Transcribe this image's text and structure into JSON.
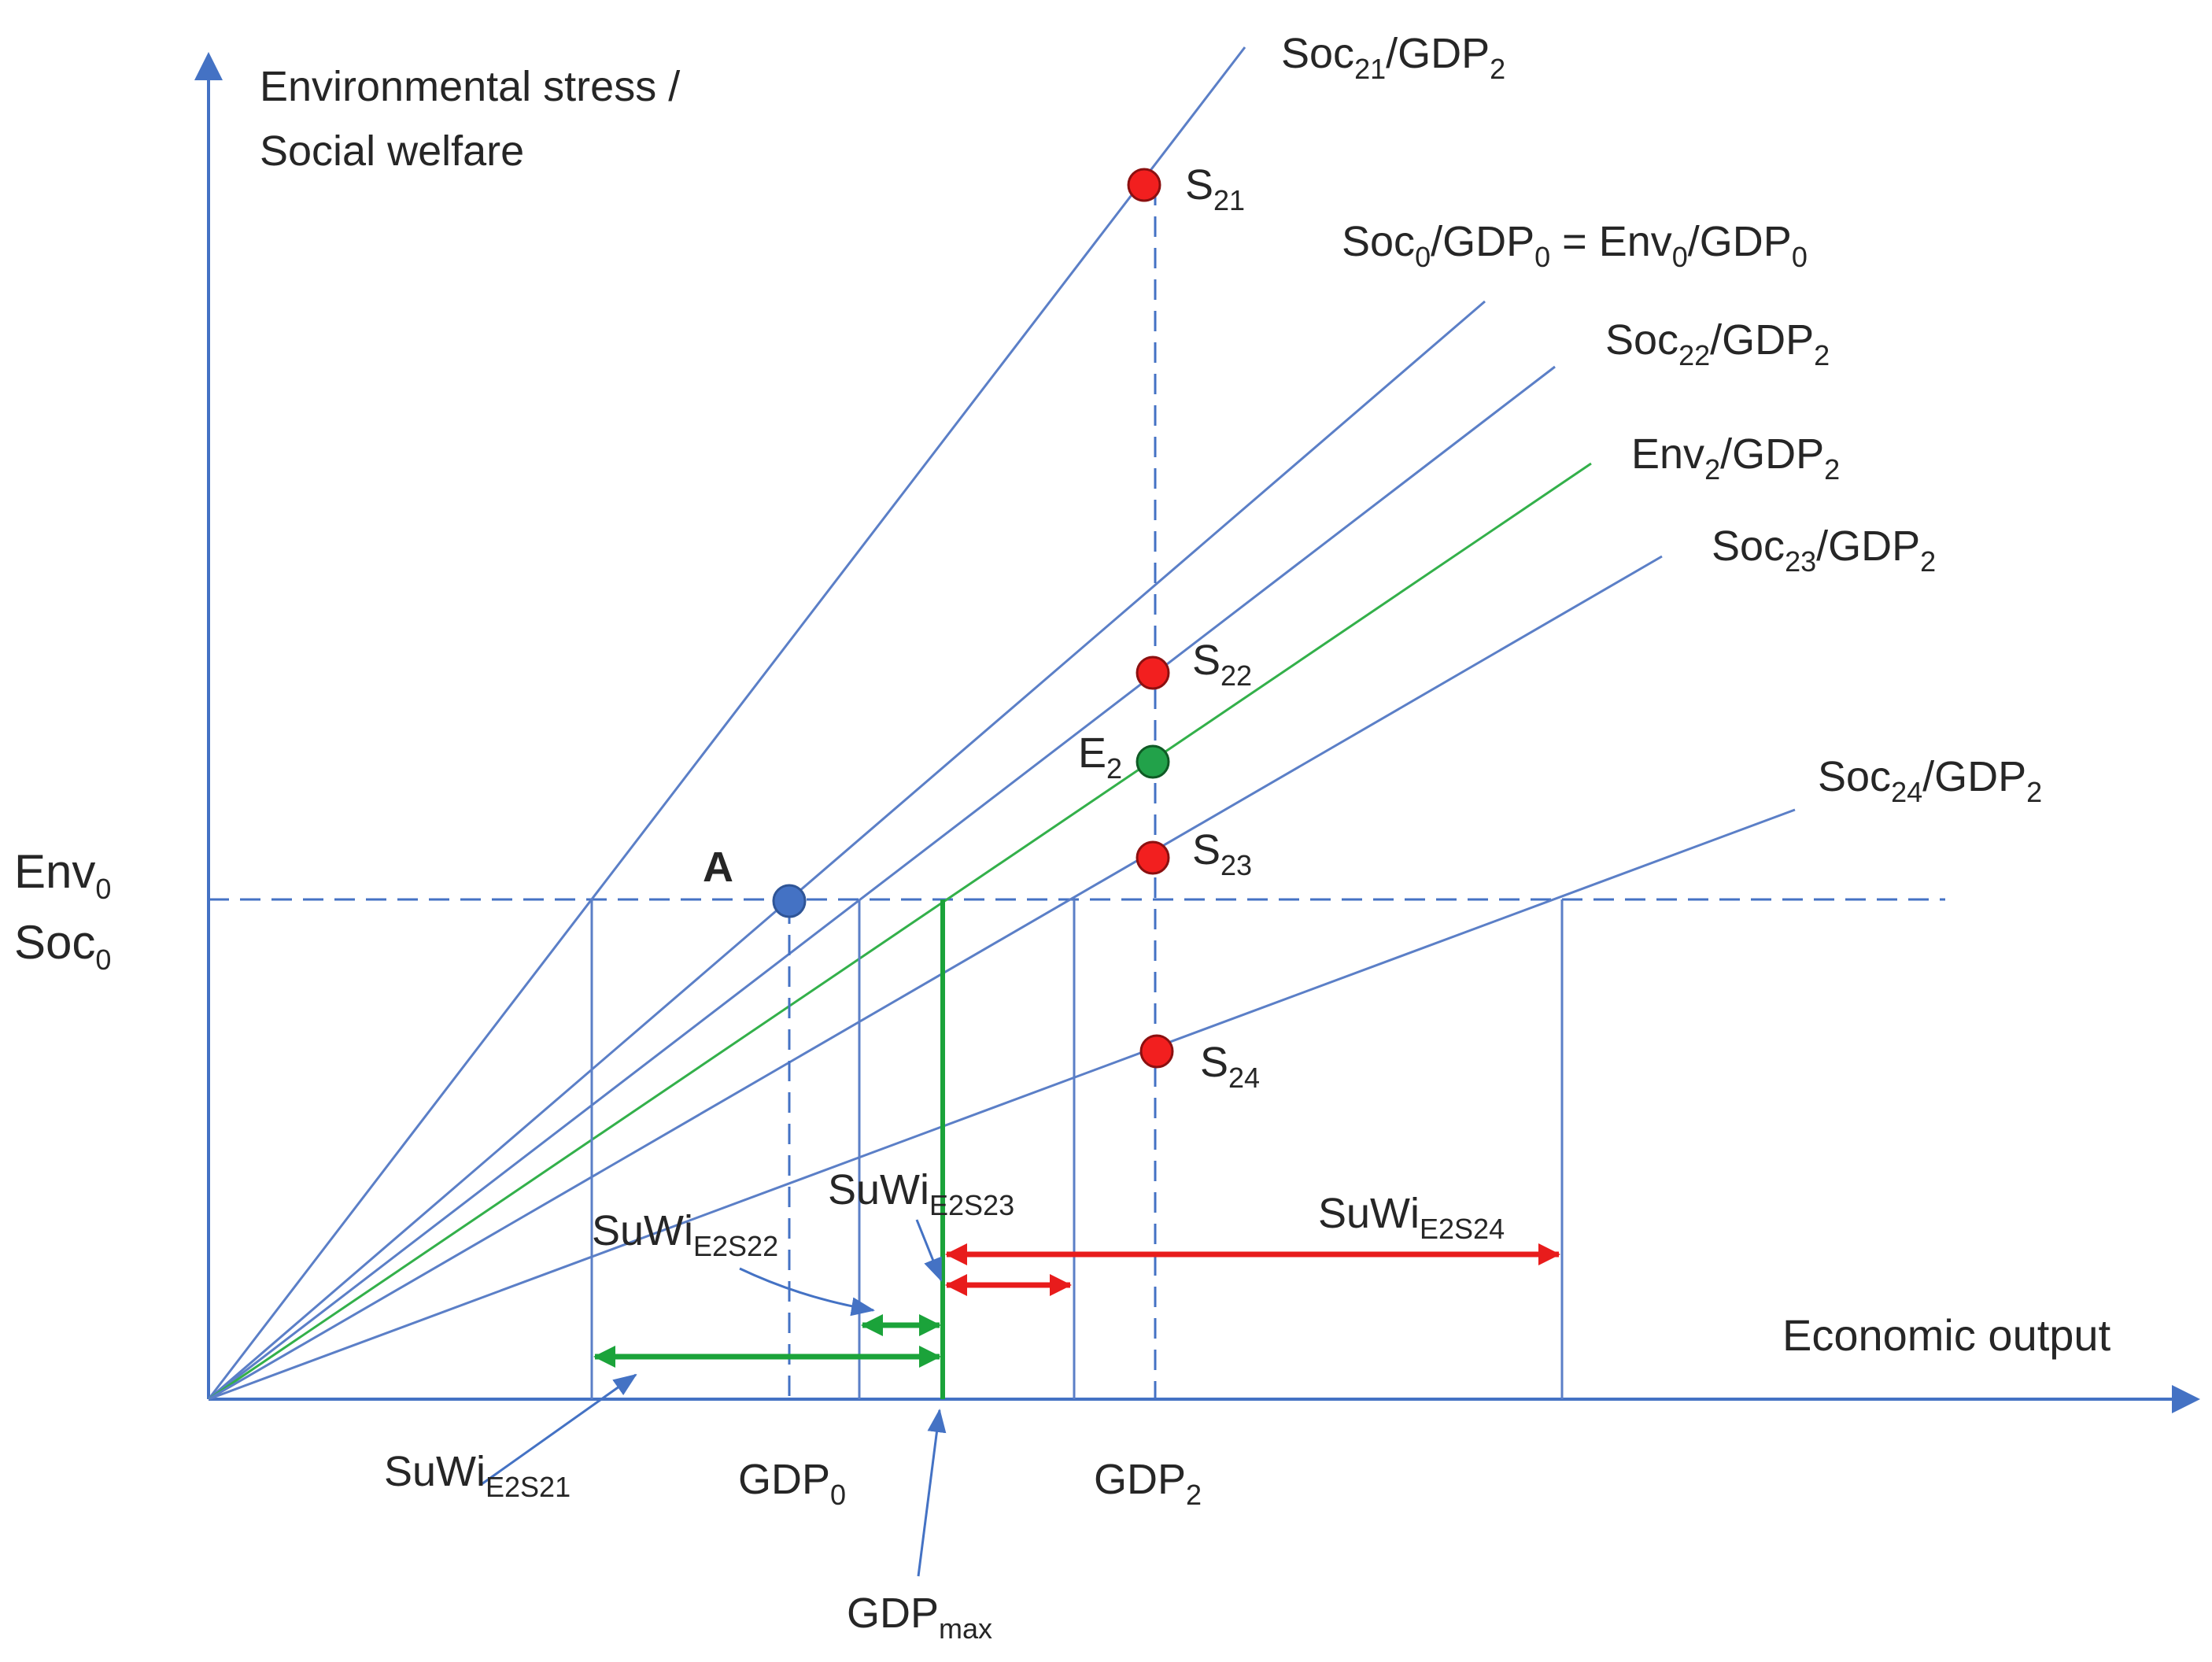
{
  "axes": {
    "y_title_line1": "Environmental stress /",
    "y_title_line2": "Social welfare",
    "x_title": "Economic output"
  },
  "levels": {
    "env0": {
      "base": "Env",
      "sub": "0"
    },
    "soc0": {
      "base": "Soc",
      "sub": "0"
    }
  },
  "rays": {
    "soc21": {
      "a": "Soc",
      "a_sub": "21",
      "b": "/GDP",
      "b_sub": "2"
    },
    "soc0_env0": {
      "a": "Soc",
      "a_sub": "0",
      "b": "/GDP",
      "b_sub": "0",
      "c": " = Env",
      "c_sub": "0",
      "d": "/GDP",
      "d_sub": "0"
    },
    "soc22": {
      "a": "Soc",
      "a_sub": "22",
      "b": "/GDP",
      "b_sub": "2"
    },
    "env2": {
      "a": "Env",
      "a_sub": "2",
      "b": "/GDP",
      "b_sub": "2"
    },
    "soc23": {
      "a": "Soc",
      "a_sub": "23",
      "b": "/GDP",
      "b_sub": "2"
    },
    "soc24": {
      "a": "Soc",
      "a_sub": "24",
      "b": "/GDP",
      "b_sub": "2"
    }
  },
  "points": {
    "a": {
      "label": "A"
    },
    "s21": {
      "base": "S",
      "sub": "21"
    },
    "s22": {
      "base": "S",
      "sub": "22"
    },
    "e2": {
      "base": "E",
      "sub": "2"
    },
    "s23": {
      "base": "S",
      "sub": "23"
    },
    "s24": {
      "base": "S",
      "sub": "24"
    }
  },
  "ticks": {
    "gdp0": {
      "base": "GDP",
      "sub": "0"
    },
    "gdp2": {
      "base": "GDP",
      "sub": "2"
    },
    "gdpmax": {
      "base": "GDP",
      "sub": "max"
    }
  },
  "suwi": {
    "s21": {
      "base": "SuWi",
      "sub": "E2S21"
    },
    "s22": {
      "base": "SuWi",
      "sub": "E2S22"
    },
    "s23": {
      "base": "SuWi",
      "sub": "E2S23"
    },
    "s24": {
      "base": "SuWi",
      "sub": "E2S24"
    }
  },
  "colors": {
    "axis": "#4472C4",
    "line": "#5B7FC7",
    "env_line": "#33B04A",
    "green": "#1BA33A",
    "red": "#E81C1C",
    "point_red": "#F21F1F",
    "point_blue": "#4472C4",
    "point_green": "#22A24A",
    "text": "#262626"
  }
}
